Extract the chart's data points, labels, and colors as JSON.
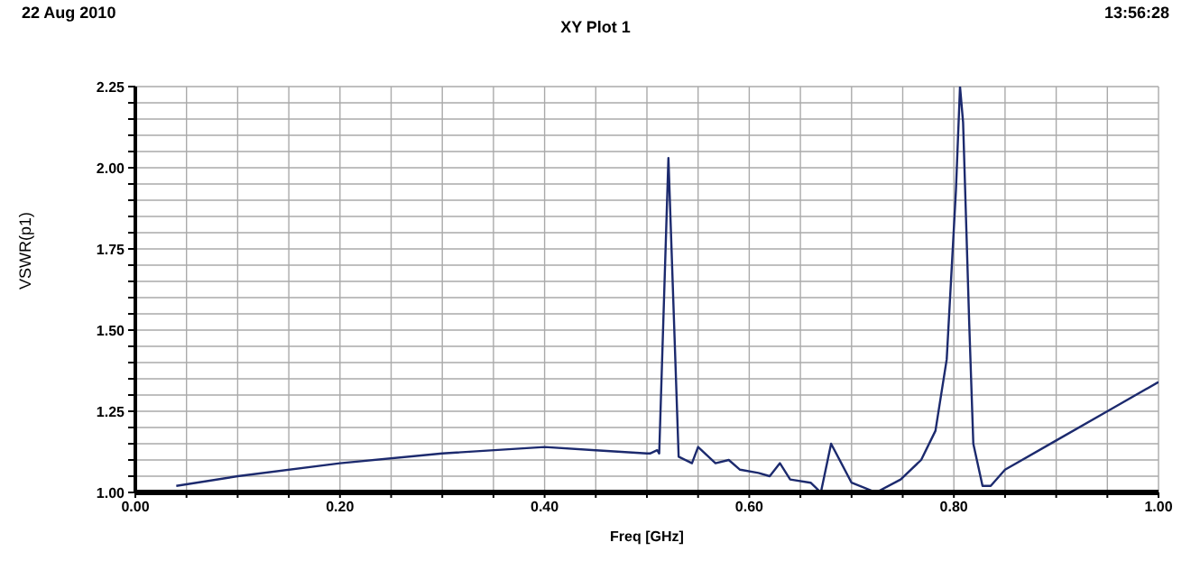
{
  "chart_data": {
    "type": "line",
    "title": "XY Plot 1",
    "xlabel": "Freq [GHz]",
    "ylabel": "VSWR(p1)",
    "annotations": [
      "22 Aug 2010",
      "13:56:28"
    ],
    "x": [
      0.04,
      0.1,
      0.2,
      0.3,
      0.4,
      0.45,
      0.5,
      0.503,
      0.51,
      0.512,
      0.521,
      0.531,
      0.544,
      0.55,
      0.567,
      0.58,
      0.591,
      0.609,
      0.62,
      0.63,
      0.64,
      0.66,
      0.67,
      0.68,
      0.7,
      0.724,
      0.748,
      0.768,
      0.782,
      0.793,
      0.802,
      0.806,
      0.809,
      0.815,
      0.819,
      0.828,
      0.836,
      0.85,
      0.9,
      0.95,
      1.0
    ],
    "series": [
      {
        "color": "#1c2a6e",
        "values": [
          1.02,
          1.05,
          1.09,
          1.12,
          1.14,
          1.13,
          1.12,
          1.12,
          1.13,
          1.12,
          2.03,
          1.11,
          1.09,
          1.14,
          1.09,
          1.1,
          1.07,
          1.06,
          1.05,
          1.09,
          1.04,
          1.03,
          1.0,
          1.15,
          1.03,
          1.0,
          1.04,
          1.1,
          1.19,
          1.41,
          1.93,
          2.25,
          2.14,
          1.52,
          1.15,
          1.02,
          1.02,
          1.07,
          1.16,
          1.25,
          1.34
        ]
      }
    ],
    "xlim": [
      0,
      1
    ],
    "ylim": [
      1,
      2.25
    ],
    "xticks": [
      {
        "value": 0,
        "label": "0.00"
      },
      {
        "value": 0.05,
        "label": null
      },
      {
        "value": 0.1,
        "label": null
      },
      {
        "value": 0.15,
        "label": null
      },
      {
        "value": 0.2,
        "label": "0.20"
      },
      {
        "value": 0.25,
        "label": null
      },
      {
        "value": 0.3,
        "label": null
      },
      {
        "value": 0.35,
        "label": null
      },
      {
        "value": 0.4,
        "label": "0.40"
      },
      {
        "value": 0.45,
        "label": null
      },
      {
        "value": 0.5,
        "label": null
      },
      {
        "value": 0.55,
        "label": null
      },
      {
        "value": 0.6,
        "label": "0.60"
      },
      {
        "value": 0.65,
        "label": null
      },
      {
        "value": 0.7,
        "label": null
      },
      {
        "value": 0.75,
        "label": null
      },
      {
        "value": 0.8,
        "label": "0.80"
      },
      {
        "value": 0.85,
        "label": null
      },
      {
        "value": 0.9,
        "label": null
      },
      {
        "value": 0.95,
        "label": null
      },
      {
        "value": 1,
        "label": "1.00"
      }
    ],
    "yticks": [
      {
        "value": 1,
        "label": "1.00"
      },
      {
        "value": 1.05,
        "label": null
      },
      {
        "value": 1.1,
        "label": null
      },
      {
        "value": 1.15,
        "label": null
      },
      {
        "value": 1.2,
        "label": null
      },
      {
        "value": 1.25,
        "label": "1.25"
      },
      {
        "value": 1.3,
        "label": null
      },
      {
        "value": 1.35,
        "label": null
      },
      {
        "value": 1.4,
        "label": null
      },
      {
        "value": 1.45,
        "label": null
      },
      {
        "value": 1.5,
        "label": "1.50"
      },
      {
        "value": 1.55,
        "label": null
      },
      {
        "value": 1.6,
        "label": null
      },
      {
        "value": 1.65,
        "label": null
      },
      {
        "value": 1.7,
        "label": null
      },
      {
        "value": 1.75,
        "label": "1.75"
      },
      {
        "value": 1.8,
        "label": null
      },
      {
        "value": 1.85,
        "label": null
      },
      {
        "value": 1.9,
        "label": null
      },
      {
        "value": 1.95,
        "label": null
      },
      {
        "value": 2,
        "label": "2.00"
      },
      {
        "value": 2.05,
        "label": null
      },
      {
        "value": 2.1,
        "label": null
      },
      {
        "value": 2.15,
        "label": null
      },
      {
        "value": 2.2,
        "label": null
      },
      {
        "value": 2.25,
        "label": "2.25"
      }
    ],
    "grid": true,
    "marker": "none",
    "line_style": "solid",
    "legend": false
  }
}
